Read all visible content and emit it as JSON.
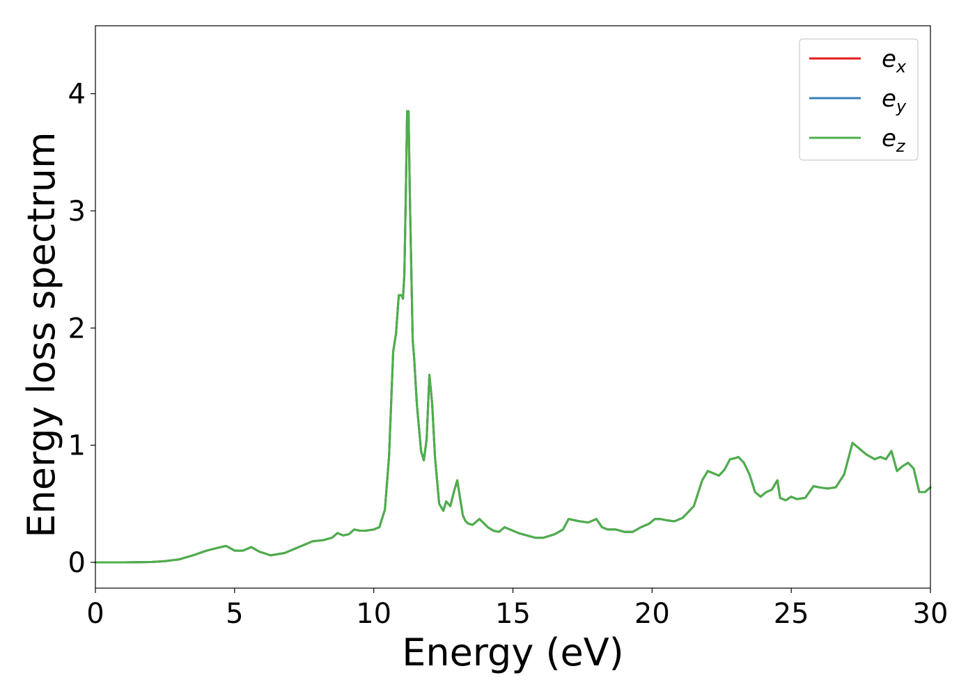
{
  "chart_data": {
    "type": "line",
    "title": "",
    "xlabel": "Energy (eV)",
    "ylabel": "Energy loss spectrum",
    "xlim": [
      0,
      30
    ],
    "ylim": [
      -0.22,
      4.58
    ],
    "xticks": [
      0,
      5,
      10,
      15,
      20,
      25,
      30
    ],
    "yticks": [
      0,
      1,
      2,
      3,
      4
    ],
    "grid": false,
    "legend_position": "top-right",
    "series": [
      {
        "name": "e_x",
        "label_base": "e",
        "label_sub": "x",
        "color": "#e41a1c",
        "x": [
          0,
          1,
          2,
          2.5,
          3,
          3.5,
          4,
          4.5,
          4.7,
          5,
          5.3,
          5.6,
          5.9,
          6.3,
          6.8,
          7.3,
          7.8,
          8.2,
          8.5,
          8.7,
          8.9,
          9.1,
          9.3,
          9.5,
          9.7,
          10,
          10.2,
          10.4,
          10.55,
          10.7,
          10.8,
          10.9,
          11,
          11.05,
          11.1,
          11.15,
          11.2,
          11.25,
          11.3,
          11.35,
          11.4,
          11.45,
          11.55,
          11.7,
          11.8,
          11.9,
          12,
          12.1,
          12.2,
          12.35,
          12.5,
          12.6,
          12.75,
          12.9,
          13,
          13.1,
          13.2,
          13.3,
          13.4,
          13.55,
          13.8,
          14.1,
          14.3,
          14.5,
          14.7,
          15,
          15.2,
          15.5,
          15.8,
          16.1,
          16.5,
          16.8,
          17,
          17.2,
          17.4,
          17.7,
          18,
          18.2,
          18.4,
          18.7,
          19,
          19.3,
          19.6,
          19.9,
          20.1,
          20.3,
          20.5,
          20.8,
          21.1,
          21.5,
          21.8,
          22,
          22.2,
          22.4,
          22.6,
          22.8,
          23,
          23.1,
          23.3,
          23.5,
          23.7,
          23.9,
          24.1,
          24.3,
          24.5,
          24.6,
          24.8,
          25,
          25.2,
          25.5,
          25.8,
          26,
          26.3,
          26.6,
          26.9,
          27.2,
          27.4,
          27.7,
          28,
          28.2,
          28.4,
          28.6,
          28.8,
          29,
          29.2,
          29.4,
          29.6,
          29.8,
          30
        ],
        "y": [
          0,
          0,
          0.003,
          0.01,
          0.025,
          0.06,
          0.1,
          0.13,
          0.14,
          0.1,
          0.1,
          0.13,
          0.09,
          0.06,
          0.08,
          0.13,
          0.18,
          0.19,
          0.21,
          0.25,
          0.23,
          0.24,
          0.28,
          0.27,
          0.27,
          0.28,
          0.3,
          0.45,
          0.9,
          1.8,
          1.95,
          2.28,
          2.28,
          2.25,
          2.45,
          3.1,
          3.85,
          3.85,
          3.1,
          2.5,
          1.9,
          1.75,
          1.35,
          0.95,
          0.87,
          1.05,
          1.6,
          1.35,
          0.9,
          0.5,
          0.44,
          0.52,
          0.48,
          0.62,
          0.7,
          0.55,
          0.4,
          0.35,
          0.33,
          0.32,
          0.37,
          0.3,
          0.27,
          0.26,
          0.3,
          0.27,
          0.25,
          0.23,
          0.21,
          0.21,
          0.24,
          0.28,
          0.37,
          0.36,
          0.35,
          0.34,
          0.37,
          0.3,
          0.28,
          0.28,
          0.26,
          0.26,
          0.3,
          0.33,
          0.37,
          0.37,
          0.36,
          0.35,
          0.38,
          0.48,
          0.7,
          0.78,
          0.76,
          0.74,
          0.79,
          0.88,
          0.89,
          0.9,
          0.85,
          0.75,
          0.6,
          0.56,
          0.6,
          0.62,
          0.7,
          0.55,
          0.53,
          0.56,
          0.54,
          0.55,
          0.65,
          0.64,
          0.63,
          0.64,
          0.75,
          1.02,
          0.98,
          0.92,
          0.88,
          0.9,
          0.88,
          0.95,
          0.78,
          0.82,
          0.85,
          0.8,
          0.6,
          0.6,
          0.64
        ]
      },
      {
        "name": "e_y",
        "label_base": "e",
        "label_sub": "y",
        "color": "#377eb8",
        "x": [
          0,
          1,
          2,
          2.5,
          3,
          3.5,
          4,
          4.5,
          4.7,
          5,
          5.3,
          5.6,
          5.9,
          6.3,
          6.8,
          7.3,
          7.8,
          8.2,
          8.5,
          8.7,
          8.9,
          9.1,
          9.3,
          9.5,
          9.7,
          10,
          10.2,
          10.4,
          10.55,
          10.7,
          10.8,
          10.9,
          11,
          11.05,
          11.1,
          11.15,
          11.2,
          11.25,
          11.3,
          11.35,
          11.4,
          11.45,
          11.55,
          11.7,
          11.8,
          11.9,
          12,
          12.1,
          12.2,
          12.35,
          12.5,
          12.6,
          12.75,
          12.9,
          13,
          13.1,
          13.2,
          13.3,
          13.4,
          13.55,
          13.8,
          14.1,
          14.3,
          14.5,
          14.7,
          15,
          15.2,
          15.5,
          15.8,
          16.1,
          16.5,
          16.8,
          17,
          17.2,
          17.4,
          17.7,
          18,
          18.2,
          18.4,
          18.7,
          19,
          19.3,
          19.6,
          19.9,
          20.1,
          20.3,
          20.5,
          20.8,
          21.1,
          21.5,
          21.8,
          22,
          22.2,
          22.4,
          22.6,
          22.8,
          23,
          23.1,
          23.3,
          23.5,
          23.7,
          23.9,
          24.1,
          24.3,
          24.5,
          24.6,
          24.8,
          25,
          25.2,
          25.5,
          25.8,
          26,
          26.3,
          26.6,
          26.9,
          27.2,
          27.4,
          27.7,
          28,
          28.2,
          28.4,
          28.6,
          28.8,
          29,
          29.2,
          29.4,
          29.6,
          29.8,
          30
        ],
        "y": [
          0,
          0,
          0.003,
          0.01,
          0.025,
          0.06,
          0.1,
          0.13,
          0.14,
          0.1,
          0.1,
          0.13,
          0.09,
          0.06,
          0.08,
          0.13,
          0.18,
          0.19,
          0.21,
          0.25,
          0.23,
          0.24,
          0.28,
          0.27,
          0.27,
          0.28,
          0.3,
          0.45,
          0.9,
          1.8,
          1.95,
          2.28,
          2.28,
          2.25,
          2.45,
          3.1,
          3.85,
          3.85,
          3.1,
          2.5,
          1.9,
          1.75,
          1.35,
          0.95,
          0.87,
          1.05,
          1.6,
          1.35,
          0.9,
          0.5,
          0.44,
          0.52,
          0.48,
          0.62,
          0.7,
          0.55,
          0.4,
          0.35,
          0.33,
          0.32,
          0.37,
          0.3,
          0.27,
          0.26,
          0.3,
          0.27,
          0.25,
          0.23,
          0.21,
          0.21,
          0.24,
          0.28,
          0.37,
          0.36,
          0.35,
          0.34,
          0.37,
          0.3,
          0.28,
          0.28,
          0.26,
          0.26,
          0.3,
          0.33,
          0.37,
          0.37,
          0.36,
          0.35,
          0.38,
          0.48,
          0.7,
          0.78,
          0.76,
          0.74,
          0.79,
          0.88,
          0.89,
          0.9,
          0.85,
          0.75,
          0.6,
          0.56,
          0.6,
          0.62,
          0.7,
          0.55,
          0.53,
          0.56,
          0.54,
          0.55,
          0.65,
          0.64,
          0.63,
          0.64,
          0.75,
          1.02,
          0.98,
          0.92,
          0.88,
          0.9,
          0.88,
          0.95,
          0.78,
          0.82,
          0.85,
          0.8,
          0.6,
          0.6,
          0.64
        ]
      },
      {
        "name": "e_z",
        "label_base": "e",
        "label_sub": "z",
        "color": "#4daf4a",
        "x": [
          0,
          1,
          2,
          2.5,
          3,
          3.5,
          4,
          4.5,
          4.7,
          5,
          5.3,
          5.6,
          5.9,
          6.3,
          6.8,
          7.3,
          7.8,
          8.2,
          8.5,
          8.7,
          8.9,
          9.1,
          9.3,
          9.5,
          9.7,
          10,
          10.2,
          10.4,
          10.55,
          10.7,
          10.8,
          10.9,
          11,
          11.05,
          11.1,
          11.15,
          11.2,
          11.25,
          11.3,
          11.35,
          11.4,
          11.45,
          11.55,
          11.7,
          11.8,
          11.9,
          12,
          12.1,
          12.2,
          12.35,
          12.5,
          12.6,
          12.75,
          12.9,
          13,
          13.1,
          13.2,
          13.3,
          13.4,
          13.55,
          13.8,
          14.1,
          14.3,
          14.5,
          14.7,
          15,
          15.2,
          15.5,
          15.8,
          16.1,
          16.5,
          16.8,
          17,
          17.2,
          17.4,
          17.7,
          18,
          18.2,
          18.4,
          18.7,
          19,
          19.3,
          19.6,
          19.9,
          20.1,
          20.3,
          20.5,
          20.8,
          21.1,
          21.5,
          21.8,
          22,
          22.2,
          22.4,
          22.6,
          22.8,
          23,
          23.1,
          23.3,
          23.5,
          23.7,
          23.9,
          24.1,
          24.3,
          24.5,
          24.6,
          24.8,
          25,
          25.2,
          25.5,
          25.8,
          26,
          26.3,
          26.6,
          26.9,
          27.2,
          27.4,
          27.7,
          28,
          28.2,
          28.4,
          28.6,
          28.8,
          29,
          29.2,
          29.4,
          29.6,
          29.8,
          30
        ],
        "y": [
          0,
          0,
          0.003,
          0.01,
          0.025,
          0.06,
          0.1,
          0.13,
          0.14,
          0.1,
          0.1,
          0.13,
          0.09,
          0.06,
          0.08,
          0.13,
          0.18,
          0.19,
          0.21,
          0.25,
          0.23,
          0.24,
          0.28,
          0.27,
          0.27,
          0.28,
          0.3,
          0.45,
          0.9,
          1.8,
          1.95,
          2.28,
          2.28,
          2.25,
          2.45,
          3.1,
          3.85,
          3.85,
          3.1,
          2.5,
          1.9,
          1.75,
          1.35,
          0.95,
          0.87,
          1.05,
          1.6,
          1.35,
          0.9,
          0.5,
          0.44,
          0.52,
          0.48,
          0.62,
          0.7,
          0.55,
          0.4,
          0.35,
          0.33,
          0.32,
          0.37,
          0.3,
          0.27,
          0.26,
          0.3,
          0.27,
          0.25,
          0.23,
          0.21,
          0.21,
          0.24,
          0.28,
          0.37,
          0.36,
          0.35,
          0.34,
          0.37,
          0.3,
          0.28,
          0.28,
          0.26,
          0.26,
          0.3,
          0.33,
          0.37,
          0.37,
          0.36,
          0.35,
          0.38,
          0.48,
          0.7,
          0.78,
          0.76,
          0.74,
          0.79,
          0.88,
          0.89,
          0.9,
          0.85,
          0.75,
          0.6,
          0.56,
          0.6,
          0.62,
          0.7,
          0.55,
          0.53,
          0.56,
          0.54,
          0.55,
          0.65,
          0.64,
          0.63,
          0.64,
          0.75,
          1.02,
          0.98,
          0.92,
          0.88,
          0.9,
          0.88,
          0.95,
          0.78,
          0.82,
          0.85,
          0.8,
          0.6,
          0.6,
          0.64
        ]
      }
    ]
  }
}
